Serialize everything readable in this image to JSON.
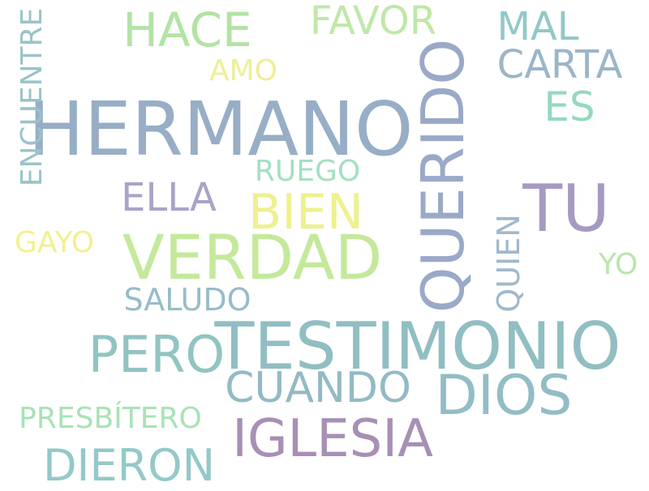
{
  "word_cloud": {
    "words": [
      {
        "id": "hermano",
        "text": "HERMANO",
        "color": "#97aec6"
      },
      {
        "id": "testimonio",
        "text": "TESTIMONIO",
        "color": "#91bec2"
      },
      {
        "id": "querido",
        "text": "QUERIDO",
        "color": "#9aa9c7"
      },
      {
        "id": "verdad",
        "text": "VERDAD",
        "color": "#c4e99b"
      },
      {
        "id": "tu",
        "text": "TU",
        "color": "#a69ac2"
      },
      {
        "id": "dios",
        "text": "DIOS",
        "color": "#93bdc6"
      },
      {
        "id": "iglesia",
        "text": "IGLESIA",
        "color": "#a88fb6"
      },
      {
        "id": "pero",
        "text": "PERO",
        "color": "#91c4c2"
      },
      {
        "id": "bien",
        "text": "BIEN",
        "color": "#eef18e"
      },
      {
        "id": "hace",
        "text": "HACE",
        "color": "#b3e3a5"
      },
      {
        "id": "dieron",
        "text": "DIERON",
        "color": "#93c9c8"
      },
      {
        "id": "cuando",
        "text": "CUANDO",
        "color": "#93bac4"
      },
      {
        "id": "ella",
        "text": "ELLA",
        "color": "#a8a4c8"
      },
      {
        "id": "carta",
        "text": "CARTA",
        "color": "#9ab6c7"
      },
      {
        "id": "favor",
        "text": "FAVOR",
        "color": "#bfe8a8"
      },
      {
        "id": "mal",
        "text": "MAL",
        "color": "#93c8c8"
      },
      {
        "id": "es",
        "text": "ES",
        "color": "#95d9bd"
      },
      {
        "id": "encuentre",
        "text": "ENCUENTRE",
        "color": "#99c4c8"
      },
      {
        "id": "ruego",
        "text": "RUEGO",
        "color": "#a3e0c0"
      },
      {
        "id": "quien",
        "text": "QUIEN",
        "color": "#a0b8cc"
      },
      {
        "id": "saludo",
        "text": "SALUDO",
        "color": "#97bcc8"
      },
      {
        "id": "presbitero",
        "text": "PRESBÍTERO",
        "color": "#a7e3b6"
      },
      {
        "id": "gayo",
        "text": "GAYO",
        "color": "#f3f08f"
      },
      {
        "id": "yo",
        "text": "YO",
        "color": "#b9e6a9"
      },
      {
        "id": "amo",
        "text": "AMO",
        "color": "#eeef96"
      }
    ]
  }
}
